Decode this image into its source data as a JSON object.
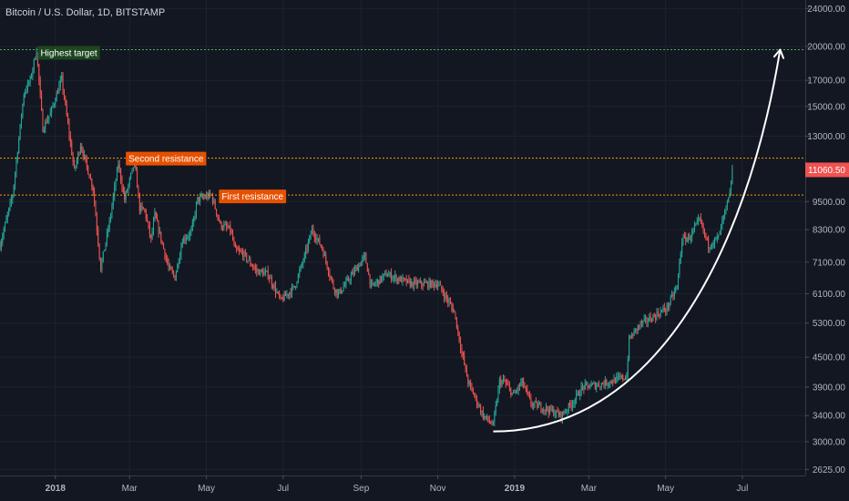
{
  "header": {
    "title": "Bitcoin / U.S. Dollar, 1D, BITSTAMP"
  },
  "colors": {
    "background": "#131722",
    "up": "#26a69a",
    "down": "#ef5350",
    "green_line": "#4caf50",
    "orange_line": "#ff9800",
    "label_green": "#1e4620",
    "label_orange": "#e65100",
    "current_price_bg": "#ef5350",
    "arrow": "#ffffff"
  },
  "annotations": {
    "highest_target": {
      "label": "Highest target",
      "price": 19700
    },
    "second_resistance": {
      "label": "Second resistance",
      "price": 11700
    },
    "first_resistance": {
      "label": "First resistance",
      "price": 9800
    }
  },
  "current_price": {
    "label": "11060.50",
    "value": 11060.5
  },
  "chart_data": {
    "type": "candlestick",
    "title": "Bitcoin / U.S. Dollar, 1D, BITSTAMP",
    "scale": "log",
    "ylim": [
      2550,
      25000
    ],
    "price_ticks": [
      {
        "value": 24000,
        "label": "24000.00"
      },
      {
        "value": 20000,
        "label": "20000.00"
      },
      {
        "value": 17000,
        "label": "17000.00"
      },
      {
        "value": 15000,
        "label": "15000.00"
      },
      {
        "value": 13000,
        "label": "13000.00"
      },
      {
        "value": 11060.5,
        "label": "11060.50"
      },
      {
        "value": 9500,
        "label": "9500.00"
      },
      {
        "value": 8300,
        "label": "8300.00"
      },
      {
        "value": 7100,
        "label": "7100.00"
      },
      {
        "value": 6100,
        "label": "6100.00"
      },
      {
        "value": 5300,
        "label": "5300.00"
      },
      {
        "value": 4500,
        "label": "4500.00"
      },
      {
        "value": 3900,
        "label": "3900.00"
      },
      {
        "value": 3400,
        "label": "3400.00"
      },
      {
        "value": 3000,
        "label": "3000.00"
      },
      {
        "value": 2625,
        "label": "2625.00"
      }
    ],
    "time_ticks": [
      {
        "date": "2018-01-01",
        "label": "2018",
        "bold": true
      },
      {
        "date": "2018-03-01",
        "label": "Mar"
      },
      {
        "date": "2018-05-01",
        "label": "May"
      },
      {
        "date": "2018-07-01",
        "label": "Jul"
      },
      {
        "date": "2018-09-01",
        "label": "Sep"
      },
      {
        "date": "2018-11-01",
        "label": "Nov"
      },
      {
        "date": "2019-01-01",
        "label": "2019",
        "bold": true
      },
      {
        "date": "2019-03-01",
        "label": "Mar"
      },
      {
        "date": "2019-05-01",
        "label": "May"
      },
      {
        "date": "2019-07-01",
        "label": "Jul"
      }
    ],
    "xlim": [
      "2017-11-18",
      "2019-08-20"
    ],
    "price_path": [
      [
        "2017-11-18",
        7700
      ],
      [
        "2017-11-28",
        9800
      ],
      [
        "2017-12-07",
        16000
      ],
      [
        "2017-12-12",
        17000
      ],
      [
        "2017-12-17",
        19700
      ],
      [
        "2017-12-22",
        13500
      ],
      [
        "2017-12-28",
        14500
      ],
      [
        "2018-01-06",
        17100
      ],
      [
        "2018-01-16",
        11000
      ],
      [
        "2018-01-21",
        12500
      ],
      [
        "2018-01-31",
        10100
      ],
      [
        "2018-02-06",
        6900
      ],
      [
        "2018-02-13",
        8600
      ],
      [
        "2018-02-20",
        11400
      ],
      [
        "2018-02-25",
        9600
      ],
      [
        "2018-03-05",
        11500
      ],
      [
        "2018-03-09",
        9200
      ],
      [
        "2018-03-13",
        9100
      ],
      [
        "2018-03-18",
        7900
      ],
      [
        "2018-03-21",
        8900
      ],
      [
        "2018-04-01",
        6900
      ],
      [
        "2018-04-06",
        6600
      ],
      [
        "2018-04-12",
        7900
      ],
      [
        "2018-04-19",
        8200
      ],
      [
        "2018-04-24",
        9600
      ],
      [
        "2018-05-05",
        9800
      ],
      [
        "2018-05-12",
        8500
      ],
      [
        "2018-05-20",
        8300
      ],
      [
        "2018-05-24",
        7500
      ],
      [
        "2018-05-30",
        7400
      ],
      [
        "2018-06-10",
        6800
      ],
      [
        "2018-06-19",
        6700
      ],
      [
        "2018-06-29",
        5900
      ],
      [
        "2018-07-10",
        6300
      ],
      [
        "2018-07-18",
        7300
      ],
      [
        "2018-07-24",
        8300
      ],
      [
        "2018-08-01",
        7600
      ],
      [
        "2018-08-10",
        6300
      ],
      [
        "2018-08-14",
        6100
      ],
      [
        "2018-08-25",
        6700
      ],
      [
        "2018-09-04",
        7300
      ],
      [
        "2018-09-09",
        6300
      ],
      [
        "2018-09-21",
        6700
      ],
      [
        "2018-10-11",
        6400
      ],
      [
        "2018-11-01",
        6400
      ],
      [
        "2018-11-14",
        5600
      ],
      [
        "2018-11-20",
        4600
      ],
      [
        "2018-11-25",
        4000
      ],
      [
        "2018-12-07",
        3400
      ],
      [
        "2018-12-15",
        3250
      ],
      [
        "2018-12-20",
        4000
      ],
      [
        "2018-12-24",
        4000
      ],
      [
        "2018-12-31",
        3750
      ],
      [
        "2019-01-07",
        4000
      ],
      [
        "2019-01-14",
        3600
      ],
      [
        "2019-01-28",
        3500
      ],
      [
        "2019-02-07",
        3400
      ],
      [
        "2019-02-17",
        3650
      ],
      [
        "2019-02-24",
        3900
      ],
      [
        "2019-03-10",
        3950
      ],
      [
        "2019-03-31",
        4100
      ],
      [
        "2019-04-02",
        4900
      ],
      [
        "2019-04-10",
        5250
      ],
      [
        "2019-04-23",
        5500
      ],
      [
        "2019-05-02",
        5700
      ],
      [
        "2019-05-10",
        6300
      ],
      [
        "2019-05-14",
        7900
      ],
      [
        "2019-05-20",
        8000
      ],
      [
        "2019-05-28",
        8700
      ],
      [
        "2019-06-04",
        7700
      ],
      [
        "2019-06-12",
        8000
      ],
      [
        "2019-06-16",
        8800
      ],
      [
        "2019-06-21",
        9800
      ],
      [
        "2019-06-23",
        11060.5
      ]
    ],
    "curve_arrow": {
      "start": [
        "2018-12-15",
        3150
      ],
      "end": [
        "2019-07-31",
        19700
      ]
    }
  }
}
